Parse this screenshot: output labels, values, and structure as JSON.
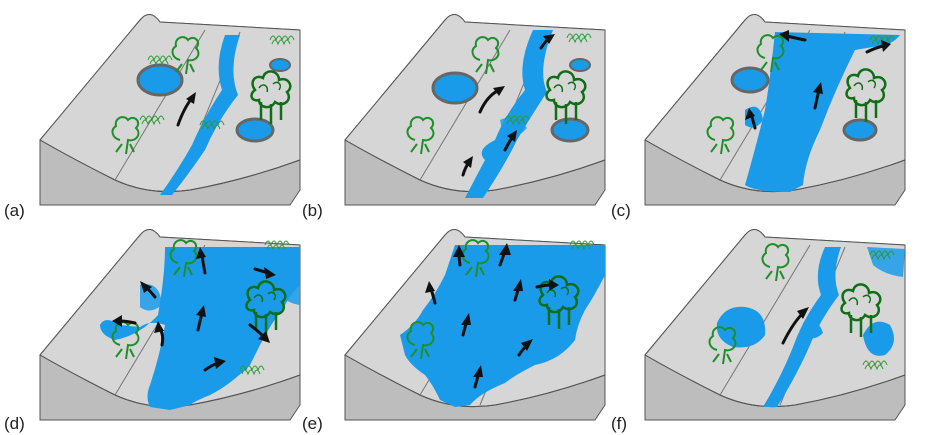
{
  "figure": {
    "panels": [
      {
        "id": "a",
        "label": "(a)",
        "stage": "normal-channel"
      },
      {
        "id": "b",
        "label": "(b)",
        "stage": "bank-overflow"
      },
      {
        "id": "c",
        "label": "(c)",
        "stage": "channel-widened"
      },
      {
        "id": "d",
        "label": "(d)",
        "stage": "floodplain-spreading"
      },
      {
        "id": "e",
        "label": "(e)",
        "stage": "full-inundation"
      },
      {
        "id": "f",
        "label": "(f)",
        "stage": "recession"
      }
    ],
    "colors": {
      "water": "#1a9bea",
      "block_top": "#d6d6d6",
      "block_side": "#bdbdbd",
      "block_line": "#555555",
      "tree": "#1f8f2a",
      "tree_dark": "#0f6e16",
      "arrow": "#111111"
    },
    "icons": [
      "deciduous-tree-icon",
      "grass-tuft-icon",
      "tree-cluster-icon",
      "flow-arrow-icon"
    ]
  }
}
